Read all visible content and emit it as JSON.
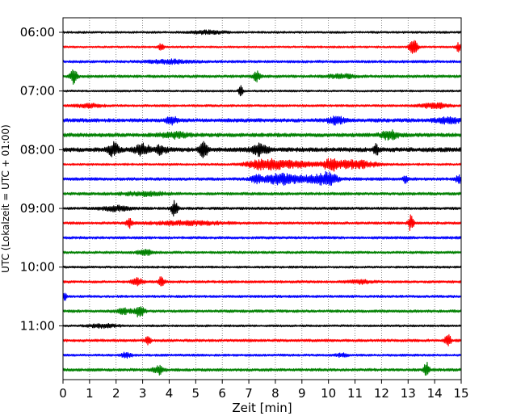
{
  "chart_data": {
    "type": "line",
    "xlabel": "Zeit  [min]",
    "ylabel": "UTC (Lokalzeit = UTC + 01:00)",
    "xlim": [
      0,
      15
    ],
    "x_ticks": [
      "0",
      "1",
      "2",
      "3",
      "4",
      "5",
      "6",
      "7",
      "8",
      "9",
      "10",
      "11",
      "12",
      "13",
      "14",
      "15"
    ],
    "y_ticks": [
      "06:00",
      "07:00",
      "08:00",
      "09:00",
      "10:00",
      "11:00"
    ],
    "vertical_grid": "dotted",
    "colors": {
      "black": "#000000",
      "red": "#ff0000",
      "blue": "#0000ff",
      "green": "#008000"
    },
    "traces": [
      {
        "start": "06:00",
        "color": "black",
        "noise": 1.3,
        "events": [
          [
            5.5,
            2,
            0.6
          ]
        ]
      },
      {
        "start": "06:15",
        "color": "red",
        "noise": 1.2,
        "events": [
          [
            3.7,
            4,
            0.1
          ],
          [
            13.2,
            9,
            0.15
          ],
          [
            14.9,
            5,
            0.1
          ]
        ]
      },
      {
        "start": "06:30",
        "color": "blue",
        "noise": 1.6,
        "events": [
          [
            4.0,
            2,
            0.8
          ]
        ]
      },
      {
        "start": "06:45",
        "color": "green",
        "noise": 1.7,
        "events": [
          [
            0.4,
            9,
            0.12
          ],
          [
            7.3,
            6,
            0.12
          ],
          [
            10.5,
            2,
            0.5
          ]
        ]
      },
      {
        "start": "07:00",
        "color": "black",
        "noise": 1.2,
        "events": [
          [
            6.7,
            7,
            0.08
          ]
        ]
      },
      {
        "start": "07:15",
        "color": "red",
        "noise": 1.4,
        "events": [
          [
            14.0,
            3,
            0.5
          ],
          [
            1.0,
            2,
            0.5
          ]
        ]
      },
      {
        "start": "07:30",
        "color": "blue",
        "noise": 2.2,
        "events": [
          [
            4.1,
            4,
            0.2
          ],
          [
            10.3,
            4,
            0.3
          ],
          [
            14.5,
            3,
            0.5
          ]
        ]
      },
      {
        "start": "07:45",
        "color": "green",
        "noise": 2.3,
        "events": [
          [
            12.3,
            5,
            0.3
          ],
          [
            4.2,
            3,
            0.5
          ]
        ]
      },
      {
        "start": "08:00",
        "color": "black",
        "noise": 2.6,
        "events": [
          [
            1.9,
            8,
            0.2
          ],
          [
            3.0,
            6,
            0.3
          ],
          [
            3.7,
            5,
            0.2
          ],
          [
            5.3,
            9,
            0.15
          ],
          [
            7.4,
            6,
            0.3
          ],
          [
            11.8,
            6,
            0.1
          ]
        ]
      },
      {
        "start": "08:15",
        "color": "red",
        "noise": 1.3,
        "events": [
          [
            7.5,
            5,
            0.6
          ],
          [
            8.5,
            4,
            1.0
          ],
          [
            10.1,
            6,
            0.3
          ],
          [
            11.0,
            5,
            0.8
          ]
        ]
      },
      {
        "start": "08:30",
        "color": "blue",
        "noise": 1.8,
        "events": [
          [
            7.3,
            5,
            0.2
          ],
          [
            8.2,
            6,
            0.6
          ],
          [
            9.5,
            4,
            0.7
          ],
          [
            10.0,
            6,
            0.3
          ],
          [
            12.9,
            4,
            0.1
          ],
          [
            14.9,
            5,
            0.1
          ]
        ]
      },
      {
        "start": "08:45",
        "color": "green",
        "noise": 1.7,
        "events": [
          [
            3.1,
            2,
            0.8
          ]
        ]
      },
      {
        "start": "09:00",
        "color": "black",
        "noise": 1.6,
        "events": [
          [
            4.2,
            9,
            0.12
          ],
          [
            2.0,
            3,
            0.5
          ]
        ]
      },
      {
        "start": "09:15",
        "color": "red",
        "noise": 1.5,
        "events": [
          [
            2.5,
            5,
            0.1
          ],
          [
            4.6,
            2,
            1.5
          ],
          [
            13.1,
            9,
            0.1
          ]
        ]
      },
      {
        "start": "09:30",
        "color": "blue",
        "noise": 1.6,
        "events": []
      },
      {
        "start": "09:45",
        "color": "green",
        "noise": 1.5,
        "events": [
          [
            3.1,
            3,
            0.3
          ]
        ]
      },
      {
        "start": "10:00",
        "color": "black",
        "noise": 1.3,
        "events": []
      },
      {
        "start": "10:15",
        "color": "red",
        "noise": 1.5,
        "events": [
          [
            2.8,
            4,
            0.2
          ],
          [
            3.7,
            9,
            0.1
          ],
          [
            11.2,
            2,
            0.4
          ]
        ]
      },
      {
        "start": "10:30",
        "color": "blue",
        "noise": 1.5,
        "events": [
          [
            0.05,
            4,
            0.1
          ]
        ]
      },
      {
        "start": "10:45",
        "color": "green",
        "noise": 1.6,
        "events": [
          [
            2.9,
            8,
            0.15
          ],
          [
            2.3,
            3,
            0.3
          ]
        ]
      },
      {
        "start": "11:00",
        "color": "black",
        "noise": 1.3,
        "events": [
          [
            1.5,
            2,
            0.5
          ]
        ]
      },
      {
        "start": "11:15",
        "color": "red",
        "noise": 1.6,
        "events": [
          [
            3.2,
            5,
            0.1
          ],
          [
            14.5,
            9,
            0.1
          ]
        ]
      },
      {
        "start": "11:30",
        "color": "blue",
        "noise": 1.4,
        "events": [
          [
            2.4,
            3,
            0.2
          ],
          [
            10.5,
            2,
            0.2
          ]
        ]
      },
      {
        "start": "11:45",
        "color": "green",
        "noise": 1.7,
        "events": [
          [
            3.6,
            5,
            0.2
          ],
          [
            13.7,
            9,
            0.1
          ]
        ]
      }
    ]
  }
}
